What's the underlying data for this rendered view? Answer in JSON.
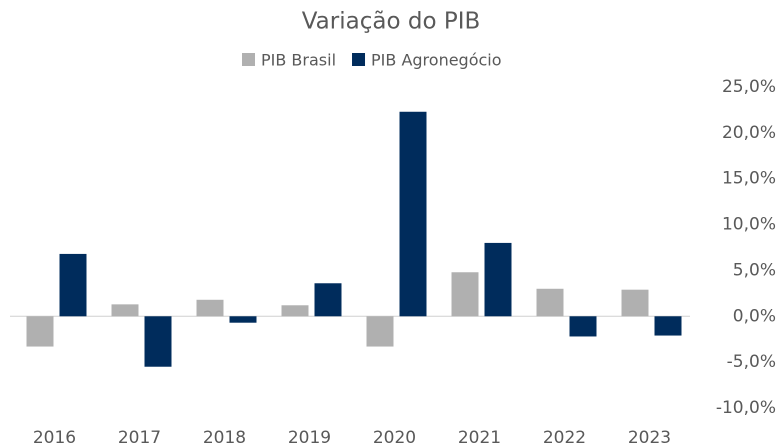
{
  "chart_data": {
    "type": "bar",
    "title": "Variação do PIB",
    "categories": [
      "2016",
      "2017",
      "2018",
      "2019",
      "2020",
      "2021",
      "2022",
      "2023"
    ],
    "series": [
      {
        "name": "PIB Brasil",
        "color": "#b0b0b0",
        "values": [
          -3.3,
          1.3,
          1.8,
          1.2,
          -3.3,
          4.8,
          3.0,
          2.9
        ]
      },
      {
        "name": "PIB Agronegócio",
        "color": "#002c5c",
        "values": [
          6.8,
          -5.5,
          -0.7,
          3.6,
          22.3,
          8.0,
          -2.2,
          -2.1
        ]
      }
    ],
    "ylim": [
      -10,
      25
    ],
    "yticks": [
      {
        "value": -10,
        "label": "-10,0%"
      },
      {
        "value": -5,
        "label": "-5,0%"
      },
      {
        "value": 0,
        "label": "0,0%"
      },
      {
        "value": 5,
        "label": "5,0%"
      },
      {
        "value": 10,
        "label": "10,0%"
      },
      {
        "value": 15,
        "label": "15,0%"
      },
      {
        "value": 20,
        "label": "20,0%"
      },
      {
        "value": 25,
        "label": "25,0%"
      }
    ],
    "y_axis_side": "right",
    "legend": "top",
    "grid": false
  }
}
